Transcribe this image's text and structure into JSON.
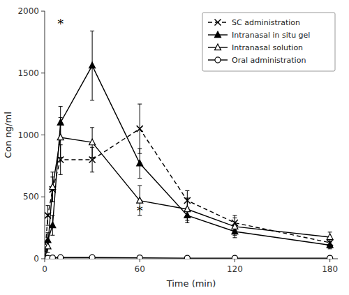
{
  "chart_data": {
    "type": "line",
    "xlabel": "Time (min)",
    "ylabel": "Con ng/ml",
    "x": [
      0,
      2,
      5,
      10,
      30,
      60,
      90,
      120,
      180
    ],
    "series": [
      {
        "name": "SC administration",
        "color": "#000000",
        "marker": "x",
        "line_style": "dashed",
        "values": [
          0,
          350,
          560,
          800,
          800,
          1050,
          470,
          290,
          130
        ],
        "errors": [
          0,
          80,
          100,
          120,
          100,
          200,
          80,
          60,
          40
        ]
      },
      {
        "name": "Intranasal in situ gel",
        "color": "#000000",
        "marker": "triangle",
        "line_style": "solid",
        "values": [
          0,
          150,
          270,
          1100,
          1560,
          770,
          350,
          220,
          110
        ],
        "errors": [
          0,
          60,
          80,
          130,
          280,
          120,
          60,
          50,
          30
        ]
      },
      {
        "name": "Intranasal solution",
        "color": "#000000",
        "marker": "triangle-open",
        "line_style": "solid",
        "values": [
          0,
          100,
          580,
          980,
          940,
          470,
          400,
          260,
          175
        ],
        "errors": [
          0,
          50,
          120,
          160,
          120,
          120,
          90,
          70,
          40
        ]
      },
      {
        "name": "Oral administration",
        "color": "#000000",
        "marker": "circle-open",
        "line_style": "solid",
        "values": [
          0,
          5,
          8,
          10,
          10,
          8,
          5,
          5,
          5
        ],
        "errors": [
          0,
          2,
          3,
          3,
          3,
          2,
          2,
          2,
          2
        ]
      }
    ],
    "annotations": [
      {
        "text": "*",
        "x": 10,
        "y": 1900
      },
      {
        "text": "*",
        "x": 60,
        "y": 390
      }
    ],
    "xlim": [
      0,
      185
    ],
    "ylim": [
      0,
      2000
    ],
    "xticks": [
      0,
      60,
      120,
      180
    ],
    "yticks": [
      0,
      500,
      1000,
      1500,
      2000
    ],
    "grid": false,
    "legend": "upper right"
  }
}
